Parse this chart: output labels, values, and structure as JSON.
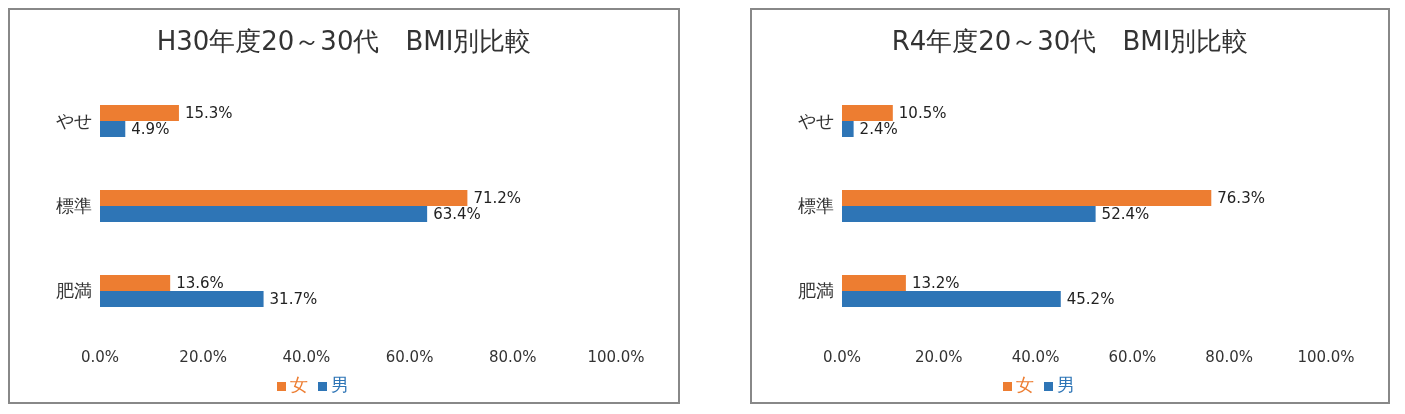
{
  "chart_data": [
    {
      "type": "bar",
      "orientation": "horizontal",
      "title": "H30年度20～30代　BMI別比較",
      "categories": [
        "やせ",
        "標準",
        "肥満"
      ],
      "xlim": [
        0,
        100
      ],
      "xticks": [
        {
          "value": 0,
          "label": "0.0%"
        },
        {
          "value": 20,
          "label": "20.0%"
        },
        {
          "value": 40,
          "label": "40.0%"
        },
        {
          "value": 60,
          "label": "60.0%"
        },
        {
          "value": 80,
          "label": "80.0%"
        },
        {
          "value": 100,
          "label": "100.0%"
        }
      ],
      "legend": "bottom",
      "series": [
        {
          "name": "女",
          "color": "#ed7d31",
          "values": [
            15.3,
            71.2,
            13.6
          ],
          "value_labels": [
            "15.3%",
            "71.2%",
            "13.6%"
          ]
        },
        {
          "name": "男",
          "color": "#2e75b6",
          "values": [
            4.9,
            63.4,
            31.7
          ],
          "value_labels": [
            "4.9%",
            "63.4%",
            "31.7%"
          ]
        }
      ]
    },
    {
      "type": "bar",
      "orientation": "horizontal",
      "title": "R4年度20～30代　BMI別比較",
      "categories": [
        "やせ",
        "標準",
        "肥満"
      ],
      "xlim": [
        0,
        100
      ],
      "xticks": [
        {
          "value": 0,
          "label": "0.0%"
        },
        {
          "value": 20,
          "label": "20.0%"
        },
        {
          "value": 40,
          "label": "40.0%"
        },
        {
          "value": 60,
          "label": "60.0%"
        },
        {
          "value": 80,
          "label": "80.0%"
        },
        {
          "value": 100,
          "label": "100.0%"
        }
      ],
      "legend": "bottom",
      "series": [
        {
          "name": "女",
          "color": "#ed7d31",
          "values": [
            10.5,
            76.3,
            13.2
          ],
          "value_labels": [
            "10.5%",
            "76.3%",
            "13.2%"
          ]
        },
        {
          "name": "男",
          "color": "#2e75b6",
          "values": [
            2.4,
            52.4,
            45.2
          ],
          "value_labels": [
            "2.4%",
            "52.4%",
            "45.2%"
          ]
        }
      ]
    }
  ]
}
